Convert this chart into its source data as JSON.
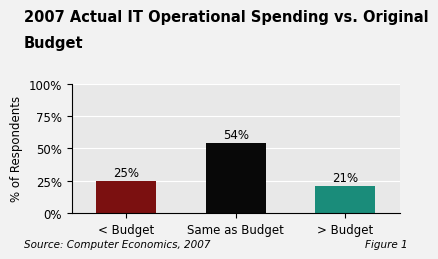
{
  "title_line1": "2007 Actual IT Operational Spending vs. Original",
  "title_line2": "Budget",
  "categories": [
    "< Budget",
    "Same as Budget",
    "> Budget"
  ],
  "values": [
    25,
    54,
    21
  ],
  "bar_colors": [
    "#7B1010",
    "#080808",
    "#1A8C7A"
  ],
  "ylabel": "% of Respondents",
  "ylim": [
    0,
    100
  ],
  "yticks": [
    0,
    25,
    50,
    75,
    100
  ],
  "ytick_labels": [
    "0%",
    "25%",
    "50%",
    "75%",
    "100%"
  ],
  "bar_width": 0.55,
  "source_text": "Source: Computer Economics, 2007",
  "figure_text": "Figure 1",
  "plot_bg_color": "#E8E8E8",
  "fig_bg_color": "#F2F2F2",
  "title_fontsize": 10.5,
  "label_fontsize": 8.5,
  "annotation_fontsize": 8.5,
  "source_fontsize": 7.5,
  "grid_color": "#FFFFFF"
}
